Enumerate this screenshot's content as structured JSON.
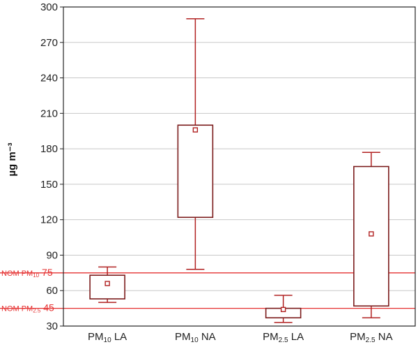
{
  "chart_data": {
    "type": "box",
    "ylabel": "µg m⁻³",
    "ylim": [
      30,
      300
    ],
    "yticks": [
      30,
      60,
      90,
      120,
      150,
      180,
      210,
      240,
      270,
      300
    ],
    "grid": true,
    "box_color": "#7a1a1a",
    "whisker_color": "#b02020",
    "ref_color": "#e53030",
    "categories": [
      {
        "base": "PM",
        "sub": "10",
        "suffix": " LA"
      },
      {
        "base": "PM",
        "sub": "10",
        "suffix": " NA"
      },
      {
        "base": "PM",
        "sub": "2.5",
        "suffix": " LA"
      },
      {
        "base": "PM",
        "sub": "2.5",
        "suffix": " NA"
      }
    ],
    "boxes": [
      {
        "whisker_low": 50,
        "q1": 53,
        "q3": 73,
        "whisker_high": 80,
        "mean": 66
      },
      {
        "whisker_low": 78,
        "q1": 122,
        "q3": 200,
        "whisker_high": 290,
        "mean": 196
      },
      {
        "whisker_low": 33,
        "q1": 37,
        "q3": 45,
        "whisker_high": 56,
        "mean": 44
      },
      {
        "whisker_low": 37,
        "q1": 47,
        "q3": 165,
        "whisker_high": 177,
        "mean": 108
      }
    ],
    "reference_lines": [
      {
        "value": 75,
        "label_base": "NOM PM",
        "label_sub": "10",
        "label_num": "75"
      },
      {
        "value": 45,
        "label_base": "NOM PM",
        "label_sub": "2.5",
        "label_num": "45"
      }
    ]
  }
}
